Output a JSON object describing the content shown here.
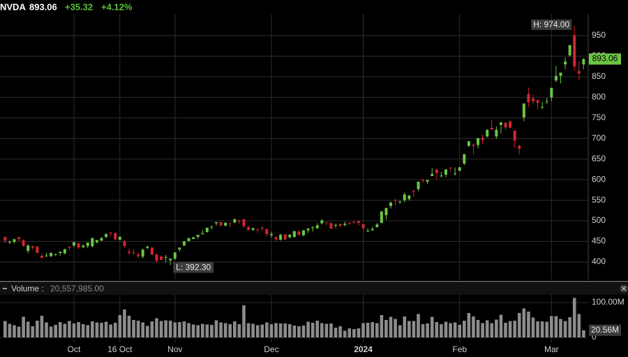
{
  "header": {
    "symbol": "NVDA",
    "price": 893.06,
    "change": "+35.32",
    "change_pct": "+4.12%",
    "change_color": "#5cc238"
  },
  "chart_data": {
    "type": "candlestick",
    "categories": [
      null,
      null,
      null,
      null,
      null,
      null,
      null,
      null,
      null,
      null,
      null,
      null,
      null,
      null,
      null,
      "Oct",
      null,
      null,
      null,
      null,
      null,
      null,
      null,
      null,
      null,
      "16 Oct",
      null,
      null,
      null,
      null,
      null,
      null,
      null,
      null,
      null,
      null,
      null,
      "Nov",
      null,
      null,
      null,
      null,
      null,
      null,
      null,
      null,
      null,
      null,
      null,
      null,
      null,
      null,
      null,
      null,
      null,
      null,
      null,
      null,
      "Dec",
      null,
      null,
      null,
      null,
      null,
      null,
      null,
      null,
      null,
      null,
      null,
      null,
      null,
      null,
      null,
      null,
      null,
      null,
      null,
      "2024",
      null,
      null,
      null,
      null,
      null,
      null,
      null,
      null,
      null,
      null,
      null,
      null,
      null,
      null,
      null,
      null,
      null,
      null,
      null,
      null,
      "Feb",
      null,
      null,
      null,
      null,
      null,
      null,
      null,
      null,
      null,
      null,
      null,
      null,
      null,
      null,
      null,
      null,
      null,
      null,
      null,
      "Mar",
      null,
      null,
      null,
      null,
      null,
      null,
      null
    ],
    "open": [
      461,
      448,
      449,
      460,
      453,
      427,
      438,
      437,
      415,
      415,
      414,
      418,
      422,
      421,
      437,
      440,
      445,
      436,
      439,
      438,
      448,
      452,
      461,
      471,
      470,
      454,
      450,
      425,
      423,
      418,
      413,
      434,
      435,
      418,
      413,
      410,
      404,
      408,
      430,
      440,
      451,
      456,
      461,
      468,
      473,
      485,
      494,
      497,
      488,
      494,
      496,
      500,
      504,
      485,
      478,
      479,
      483,
      480,
      465,
      460,
      454,
      467,
      460,
      461,
      474,
      465,
      477,
      484,
      482,
      494,
      497,
      494,
      488,
      492,
      490,
      495,
      497,
      499,
      492,
      474,
      477,
      485,
      495,
      514,
      536,
      550,
      547,
      550,
      553,
      573,
      577,
      599,
      595,
      609,
      624,
      609,
      612,
      629,
      614,
      622,
      639,
      682,
      685,
      684,
      702,
      705,
      726,
      705,
      733,
      738,
      741,
      719,
      682,
      751,
      808,
      797,
      793,
      776,
      790,
      800,
      841,
      852,
      880,
      902,
      951,
      864,
      880
    ],
    "high": [
      461,
      452,
      457,
      461,
      455,
      443,
      440,
      439,
      421,
      422,
      423,
      420,
      425,
      432,
      438,
      449,
      446,
      442,
      447,
      459,
      454,
      461,
      469,
      473,
      472,
      463,
      454,
      432,
      432,
      423,
      433,
      440,
      436,
      421,
      416,
      417,
      409,
      424,
      435,
      451,
      458,
      461,
      466,
      477,
      484,
      488,
      497,
      497,
      497,
      494,
      505,
      503,
      505,
      489,
      483,
      481,
      487,
      481,
      473,
      462,
      469,
      468,
      468,
      475,
      477,
      477,
      482,
      487,
      494,
      504,
      497,
      497,
      493,
      494,
      498,
      497,
      500,
      500,
      493,
      482,
      486,
      495,
      523,
      532,
      547,
      554,
      549,
      569,
      563,
      575,
      596,
      603,
      599,
      628,
      627,
      619,
      625,
      630,
      630,
      631,
      662,
      694,
      688,
      701,
      710,
      722,
      746,
      729,
      740,
      740,
      744,
      720,
      685,
      785,
      824,
      806,
      795,
      789,
      799,
      823,
      876,
      860,
      897,
      927,
      974,
      887,
      895
    ],
    "low": [
      445,
      443,
      445,
      450,
      437,
      421,
      430,
      422,
      410,
      412,
      412,
      414,
      415,
      418,
      428,
      436,
      431,
      433,
      434,
      436,
      444,
      451,
      458,
      462,
      453,
      452,
      435,
      418,
      418,
      410,
      409,
      431,
      416,
      398,
      405,
      398,
      392.3,
      405,
      425,
      438,
      449,
      455,
      456,
      466,
      471,
      479,
      488,
      486,
      487,
      484,
      494,
      492,
      483,
      476,
      475,
      471,
      476,
      461,
      459,
      451,
      452,
      453,
      457,
      459,
      464,
      462,
      471,
      474,
      481,
      491,
      489,
      481,
      482,
      485,
      486,
      490,
      494,
      488,
      474,
      473,
      476,
      483,
      494,
      503,
      530,
      538,
      541,
      545,
      549,
      558,
      572,
      592,
      589,
      609,
      601,
      605,
      606,
      620,
      610,
      620,
      635,
      680,
      661,
      676,
      685,
      703,
      721,
      699,
      712,
      720,
      724,
      677,
      662,
      742,
      776,
      785,
      771,
      771,
      783,
      790,
      837,
      834,
      868,
      899,
      865,
      841,
      868
    ],
    "close": [
      452,
      449,
      455,
      456,
      439,
      440,
      435,
      422,
      410,
      416,
      422,
      419,
      425,
      431,
      435,
      448,
      435,
      440,
      447,
      458,
      453,
      458,
      468,
      469,
      455,
      461,
      439,
      422,
      421,
      414,
      430,
      437,
      418,
      403,
      405,
      412,
      408,
      423,
      435,
      450,
      458,
      460,
      466,
      470,
      483,
      486,
      497,
      489,
      495,
      493,
      504,
      499,
      487,
      478,
      482,
      478,
      481,
      468,
      468,
      455,
      466,
      455,
      466,
      475,
      466,
      477,
      481,
      484,
      489,
      501,
      496,
      481,
      490,
      488,
      493,
      494,
      495,
      495,
      482,
      476,
      480,
      491,
      523,
      531,
      544,
      548,
      547,
      564,
      561,
      571,
      595,
      597,
      599,
      614,
      616,
      610,
      625,
      628,
      615,
      630,
      662,
      693,
      682,
      701,
      696,
      721,
      722,
      721,
      739,
      727,
      726,
      695,
      675,
      785,
      788,
      791,
      787,
      777,
      791,
      823,
      852,
      860,
      887,
      927,
      875,
      858,
      893.06
    ],
    "up_color": "#6cc644",
    "down_color": "#d0262e",
    "ylim": [
      357.5,
      1036.5
    ],
    "yticks": [
      400,
      450,
      500,
      550,
      600,
      650,
      700,
      750,
      800,
      850,
      900,
      950
    ],
    "grid": true,
    "annotations": [
      {
        "label": "H: 974.00",
        "value": 974
      },
      {
        "label": "L: 392.30",
        "value": 392.3
      }
    ],
    "volume": {
      "title": "Volume :",
      "label": "20,557,985.00",
      "last_label": "20.56M",
      "color": "#8c8c8c",
      "ylim": [
        0,
        122000000
      ],
      "yticks": [
        0,
        {
          "value": 100000000,
          "label": "100.00M"
        }
      ],
      "values": [
        47000000,
        39000000,
        35000000,
        31000000,
        59000000,
        45000000,
        32000000,
        48000000,
        62000000,
        43000000,
        31000000,
        36000000,
        44000000,
        39000000,
        47000000,
        40000000,
        44000000,
        38000000,
        35000000,
        46000000,
        43000000,
        42000000,
        45000000,
        37000000,
        42000000,
        64000000,
        80000000,
        62000000,
        50000000,
        48000000,
        43000000,
        33000000,
        46000000,
        55000000,
        47000000,
        49000000,
        48000000,
        43000000,
        44000000,
        46000000,
        41000000,
        37000000,
        35000000,
        39000000,
        37000000,
        36000000,
        49000000,
        43000000,
        41000000,
        38000000,
        46000000,
        38000000,
        92000000,
        41000000,
        39000000,
        35000000,
        37000000,
        43000000,
        38000000,
        41000000,
        40000000,
        40000000,
        38000000,
        34000000,
        32000000,
        34000000,
        45000000,
        42000000,
        48000000,
        41000000,
        39000000,
        40000000,
        28000000,
        32000000,
        19000000,
        26000000,
        24000000,
        26000000,
        41000000,
        42000000,
        44000000,
        41000000,
        64000000,
        50000000,
        59000000,
        53000000,
        35000000,
        60000000,
        47000000,
        47000000,
        67000000,
        38000000,
        40000000,
        59000000,
        44000000,
        38000000,
        45000000,
        41000000,
        43000000,
        36000000,
        48000000,
        70000000,
        60000000,
        50000000,
        41000000,
        49000000,
        41000000,
        51000000,
        65000000,
        42000000,
        47000000,
        48000000,
        70000000,
        83000000,
        74000000,
        57000000,
        46000000,
        46000000,
        45000000,
        61000000,
        61000000,
        53000000,
        47000000,
        58000000,
        113000000,
        67000000,
        20557985
      ]
    }
  }
}
